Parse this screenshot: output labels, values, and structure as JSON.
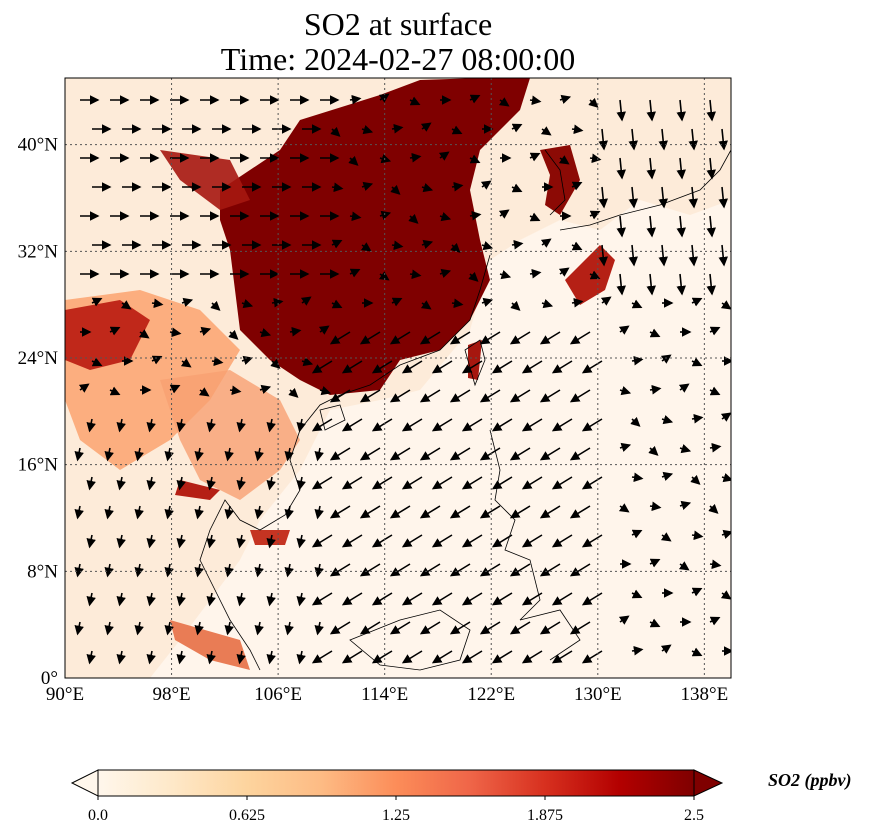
{
  "title": {
    "line1": "SO2 at surface",
    "line2": "Time: 2024-02-27 08:00:00"
  },
  "map": {
    "lon_range": [
      90,
      140
    ],
    "lat_range": [
      0,
      45
    ],
    "lon_ticks": [
      {
        "value": 90,
        "label": "90°E"
      },
      {
        "value": 98,
        "label": "98°E"
      },
      {
        "value": 106,
        "label": "106°E"
      },
      {
        "value": 114,
        "label": "114°E"
      },
      {
        "value": 122,
        "label": "122°E"
      },
      {
        "value": 130,
        "label": "130°E"
      },
      {
        "value": 138,
        "label": "138°E"
      }
    ],
    "lat_ticks": [
      {
        "value": 0,
        "label": "0°"
      },
      {
        "value": 8,
        "label": "8°N"
      },
      {
        "value": 16,
        "label": "16°N"
      },
      {
        "value": 24,
        "label": "24°N"
      },
      {
        "value": 32,
        "label": "32°N"
      },
      {
        "value": 40,
        "label": "40°N"
      }
    ],
    "gridlines": true,
    "ocean_color": "#fff5eb",
    "high_color": "#7f0000"
  },
  "colorbar": {
    "title": "SO2 (ppbv)",
    "ticks": [
      "0.0",
      "0.625",
      "1.25",
      "1.875",
      "2.5"
    ],
    "tick_values": [
      0,
      0.625,
      1.25,
      1.875,
      2.5
    ],
    "range": [
      0,
      2.5
    ],
    "colormap": [
      "#fff7ec",
      "#fee8c8",
      "#fdd49e",
      "#fdbb84",
      "#fc8d59",
      "#ef6548",
      "#d7301f",
      "#b30000",
      "#7f0000"
    ],
    "extend": "both"
  }
}
